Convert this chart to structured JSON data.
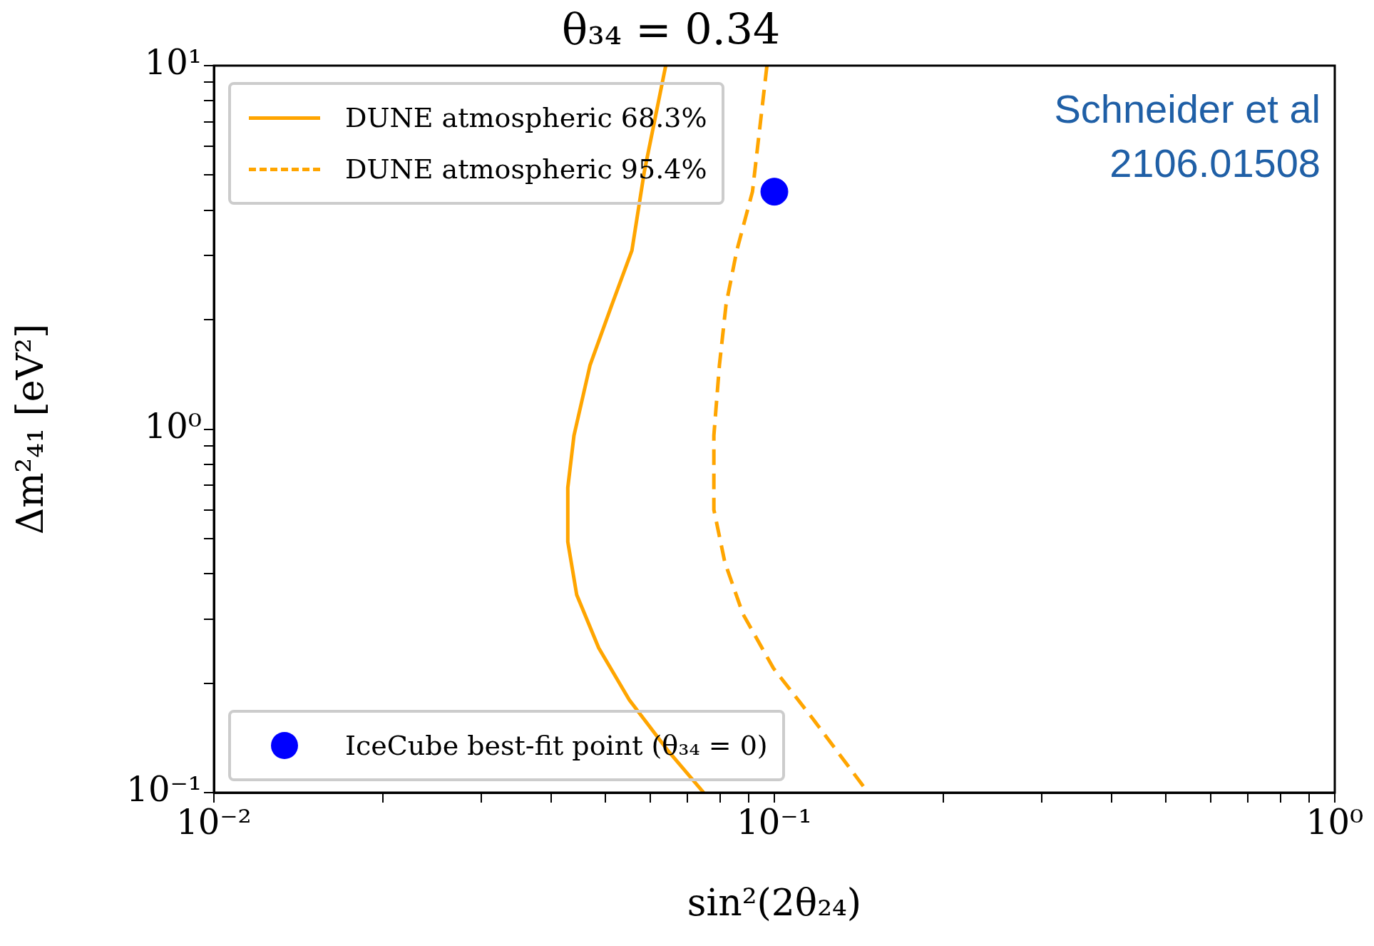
{
  "chart_data": {
    "type": "line",
    "title": "θ₃₄ = 0.34",
    "xlabel": "sin²(2θ₂₄)",
    "ylabel": "Δm²₄₁ [eV²]",
    "annotations": [
      "Schneider et al\n2106.01508"
    ],
    "log": "xy",
    "grid": false,
    "legend": "left",
    "xlim": [
      0.01,
      1
    ],
    "ylim": [
      0.1,
      10
    ],
    "xticks": [
      {
        "value": 0.01,
        "label": "10⁻²"
      },
      {
        "value": 0.02,
        "label": null
      },
      {
        "value": 0.03,
        "label": null
      },
      {
        "value": 0.04,
        "label": null
      },
      {
        "value": 0.05,
        "label": null
      },
      {
        "value": 0.06,
        "label": null
      },
      {
        "value": 0.07,
        "label": null
      },
      {
        "value": 0.08,
        "label": null
      },
      {
        "value": 0.09,
        "label": null
      },
      {
        "value": 0.1,
        "label": "10⁻¹"
      },
      {
        "value": 0.2,
        "label": null
      },
      {
        "value": 0.3,
        "label": null
      },
      {
        "value": 0.4,
        "label": null
      },
      {
        "value": 0.5,
        "label": null
      },
      {
        "value": 0.6,
        "label": null
      },
      {
        "value": 0.7,
        "label": null
      },
      {
        "value": 0.8,
        "label": null
      },
      {
        "value": 0.9,
        "label": null
      },
      {
        "value": 1,
        "label": "10⁰"
      }
    ],
    "yticks": [
      {
        "value": 0.1,
        "label": "10⁻¹"
      },
      {
        "value": 0.2,
        "label": null
      },
      {
        "value": 0.3,
        "label": null
      },
      {
        "value": 0.4,
        "label": null
      },
      {
        "value": 0.5,
        "label": null
      },
      {
        "value": 0.6,
        "label": null
      },
      {
        "value": 0.7,
        "label": null
      },
      {
        "value": 0.8,
        "label": null
      },
      {
        "value": 0.9,
        "label": null
      },
      {
        "value": 1,
        "label": "10⁰"
      },
      {
        "value": 2,
        "label": null
      },
      {
        "value": 3,
        "label": null
      },
      {
        "value": 4,
        "label": null
      },
      {
        "value": 5,
        "label": null
      },
      {
        "value": 6,
        "label": null
      },
      {
        "value": 7,
        "label": null
      },
      {
        "value": 8,
        "label": null
      },
      {
        "value": 9,
        "label": null
      },
      {
        "value": 10,
        "label": "10¹"
      }
    ],
    "series": [
      {
        "name": "DUNE atmospheric 68.3%",
        "type": "line",
        "line_style": "solid",
        "marker": "none",
        "color": "#ffa500",
        "x": [
          0.064,
          0.0586,
          0.0557,
          0.0513,
          0.0469,
          0.0439,
          0.0428,
          0.0428,
          0.0444,
          0.0486,
          0.0551,
          0.0647,
          0.0748
        ],
        "values": [
          10,
          5.1,
          3.1,
          2.2,
          1.5,
          0.96,
          0.69,
          0.49,
          0.35,
          0.25,
          0.18,
          0.13,
          0.1
        ]
      },
      {
        "name": "DUNE atmospheric 95.4%",
        "type": "line",
        "line_style": "dashed",
        "marker": "none",
        "color": "#ffa500",
        "x": [
          0.097,
          0.0914,
          0.0857,
          0.082,
          0.0798,
          0.078,
          0.078,
          0.0816,
          0.0879,
          0.0996,
          0.117,
          0.147
        ],
        "values": [
          10,
          4.5,
          3.1,
          2.2,
          1.5,
          0.96,
          0.6,
          0.43,
          0.31,
          0.22,
          0.16,
          0.1
        ]
      },
      {
        "name": "IceCube best-fit point (θ₃₄ = 0)",
        "type": "scatter",
        "marker": "circle",
        "color": "#0000ff",
        "x": [
          0.1
        ],
        "values": [
          4.5
        ]
      }
    ]
  }
}
